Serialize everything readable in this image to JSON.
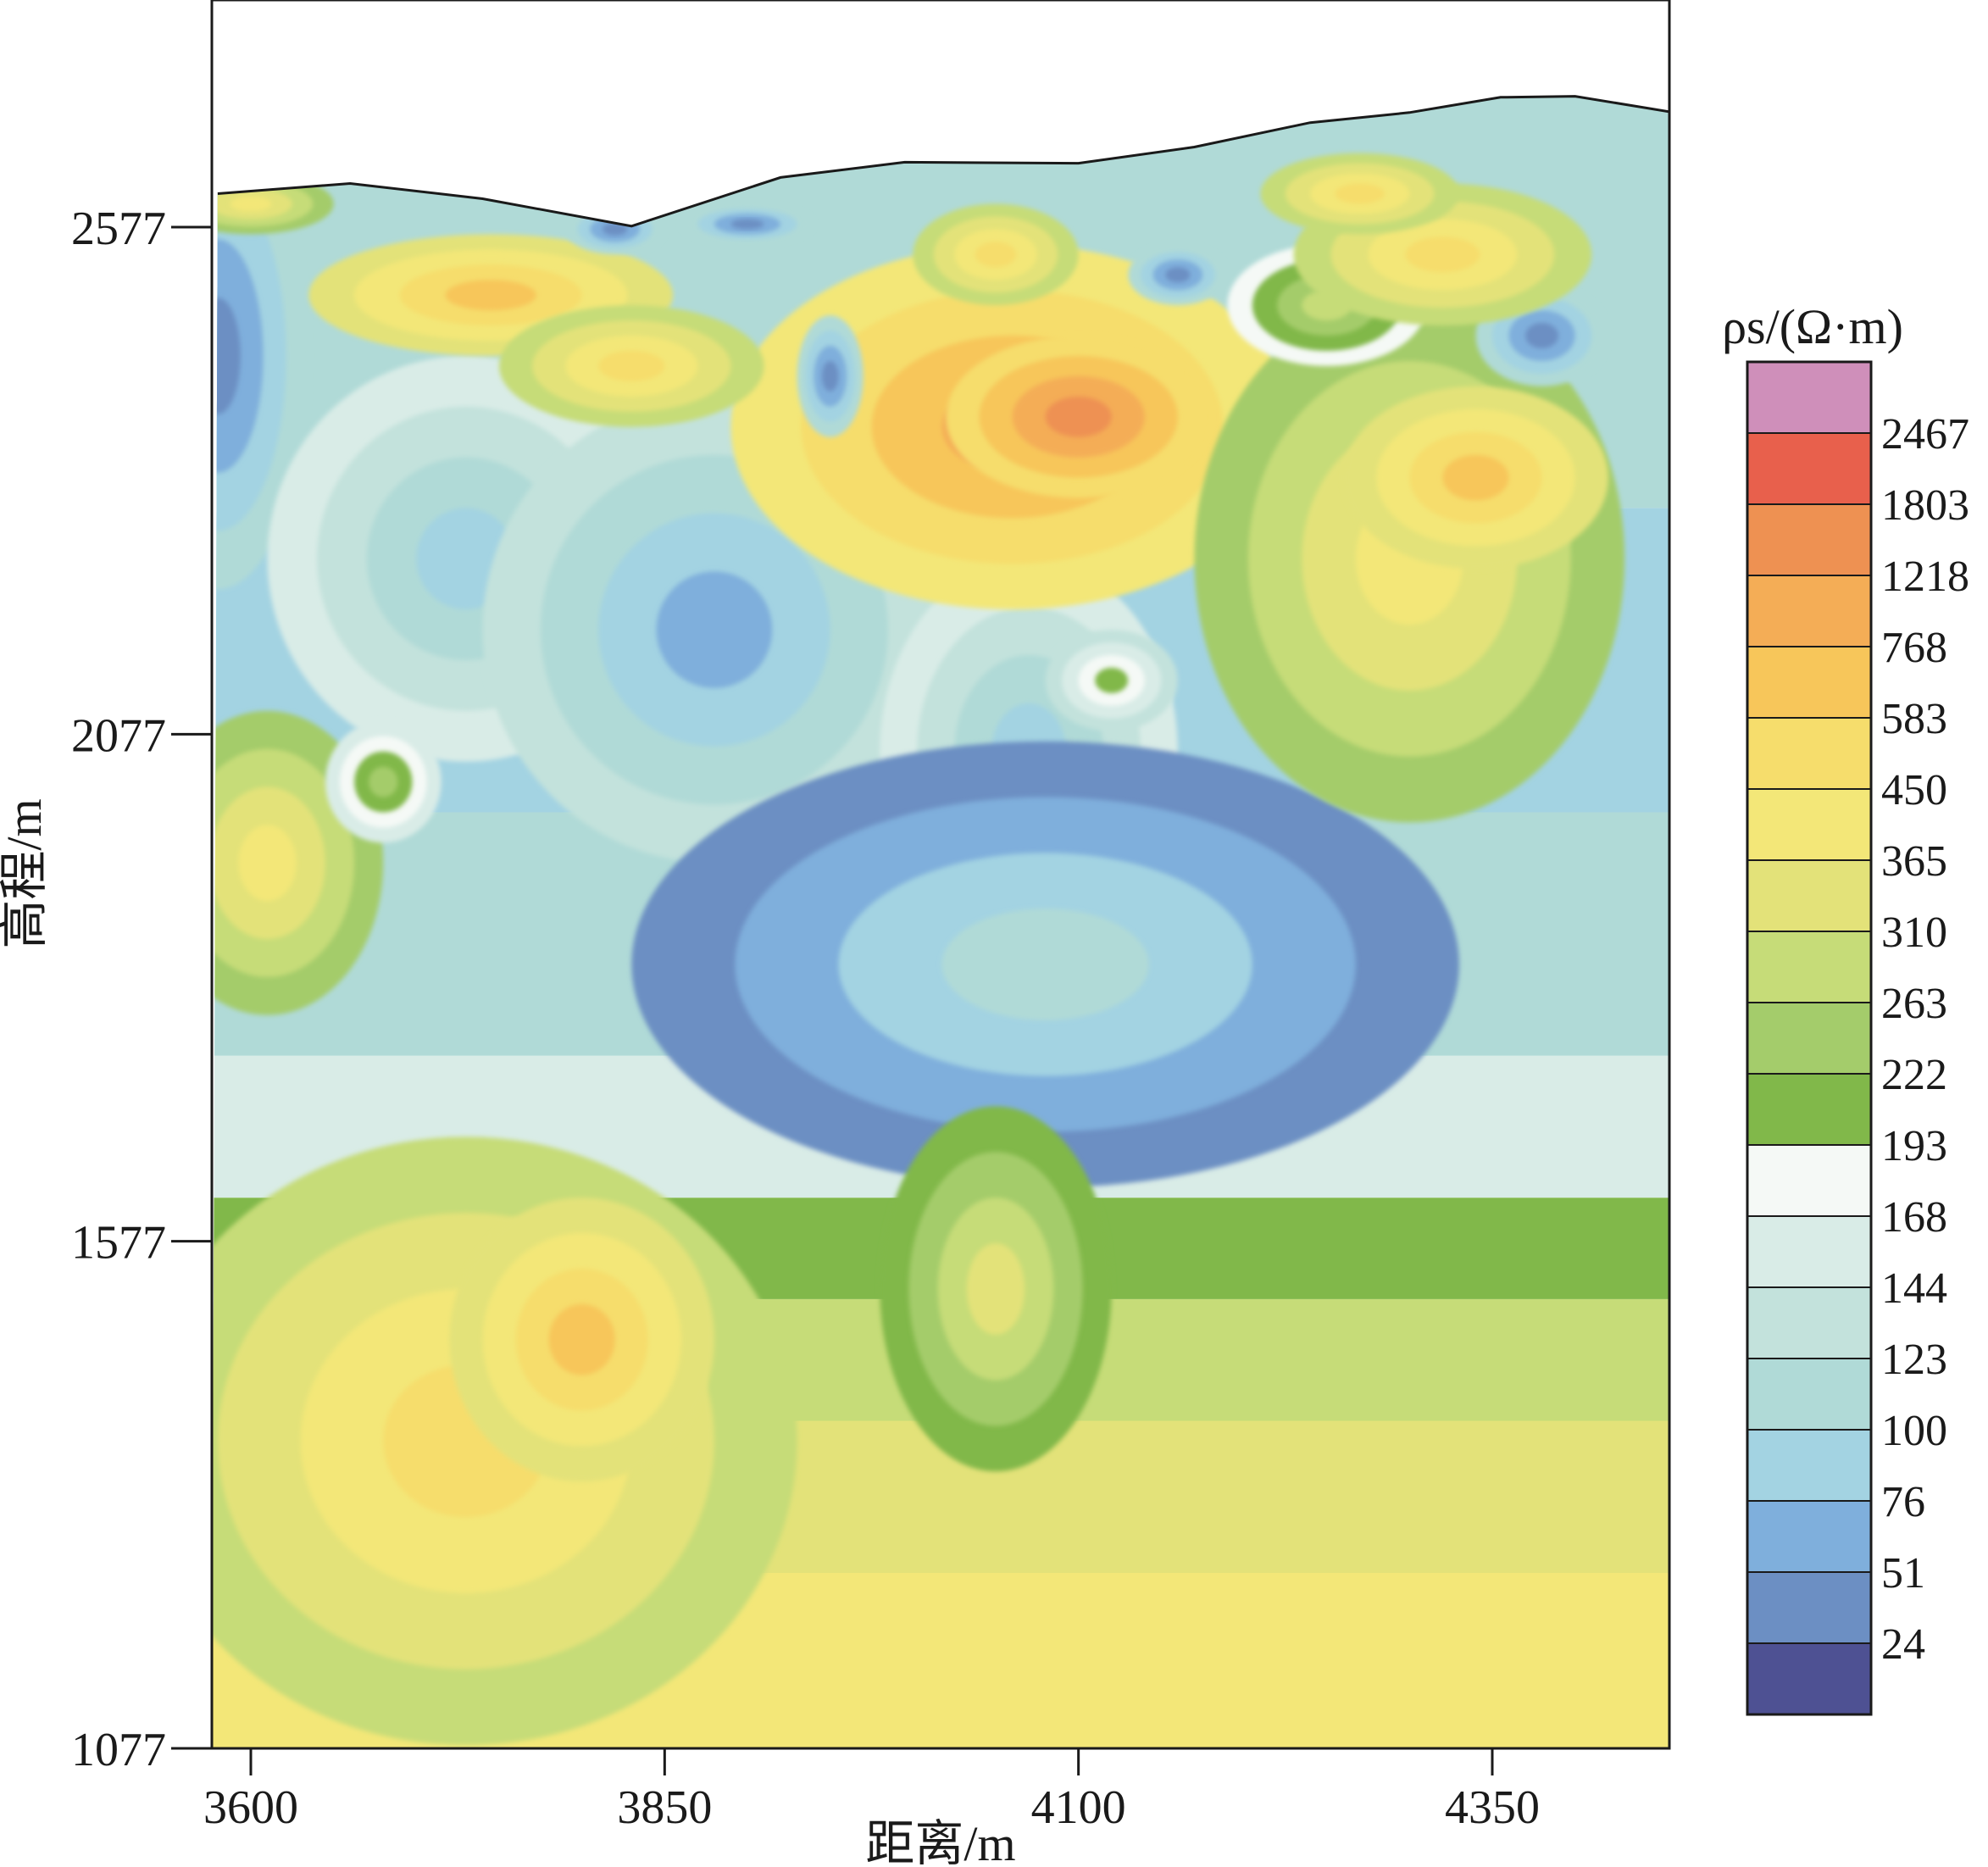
{
  "chart_data": {
    "type": "heatmap",
    "title": "",
    "xlabel": "距离/m",
    "ylabel": "高程/m",
    "x_ticks": [
      3600,
      3850,
      4100,
      4350
    ],
    "y_ticks": [
      2577,
      2077,
      1577,
      1077
    ],
    "xlim": [
      3580,
      4460
    ],
    "ylim": [
      1077,
      2800
    ],
    "colorbar": {
      "label": "ρs/(Ω·m)",
      "tick_labels": [
        "2467",
        "1803",
        "1218",
        "768",
        "583",
        "450",
        "365",
        "310",
        "263",
        "222",
        "193",
        "168",
        "144",
        "123",
        "100",
        "76",
        "51",
        "24"
      ],
      "colors": [
        "#cf8fba",
        "#e8604c",
        "#ee9152",
        "#f4ad56",
        "#f7c65a",
        "#f6dd6c",
        "#f3e778",
        "#e3e279",
        "#c6dc78",
        "#a4cc6b",
        "#81b84a",
        "#f5f9f6",
        "#d9ece7",
        "#c3e2dc",
        "#b0dad7",
        "#a3d3e2",
        "#7fafdc",
        "#6c8fc3",
        "#4e5193"
      ]
    },
    "surface_profile": [
      {
        "x": 3580,
        "y": 2610
      },
      {
        "x": 3660,
        "y": 2620
      },
      {
        "x": 3740,
        "y": 2605
      },
      {
        "x": 3830,
        "y": 2578
      },
      {
        "x": 3920,
        "y": 2626
      },
      {
        "x": 3995,
        "y": 2641
      },
      {
        "x": 4100,
        "y": 2640
      },
      {
        "x": 4170,
        "y": 2656
      },
      {
        "x": 4240,
        "y": 2680
      },
      {
        "x": 4300,
        "y": 2690
      },
      {
        "x": 4355,
        "y": 2705
      },
      {
        "x": 4400,
        "y": 2706
      },
      {
        "x": 4460,
        "y": 2690
      }
    ],
    "anomalies": [
      {
        "x": 3580,
        "y": 2450,
        "rx": 55,
        "ry": 230,
        "value": 24
      },
      {
        "x": 3730,
        "y": 2250,
        "rx": 120,
        "ry": 200,
        "value": 76
      },
      {
        "x": 3880,
        "y": 2180,
        "rx": 140,
        "ry": 230,
        "value": 51
      },
      {
        "x": 4070,
        "y": 2060,
        "rx": 90,
        "ry": 190,
        "value": 76
      },
      {
        "x": 4080,
        "y": 1850,
        "rx": 250,
        "ry": 220,
        "value": 100
      },
      {
        "x": 3610,
        "y": 1950,
        "rx": 70,
        "ry": 150,
        "value": 365
      },
      {
        "x": 3680,
        "y": 2030,
        "rx": 35,
        "ry": 60,
        "value": 222
      },
      {
        "x": 3730,
        "y": 1380,
        "rx": 200,
        "ry": 300,
        "value": 450
      },
      {
        "x": 3800,
        "y": 1480,
        "rx": 80,
        "ry": 140,
        "value": 583
      },
      {
        "x": 4050,
        "y": 1530,
        "rx": 70,
        "ry": 180,
        "value": 310
      },
      {
        "x": 4060,
        "y": 2380,
        "rx": 170,
        "ry": 180,
        "value": 768
      },
      {
        "x": 4100,
        "y": 2390,
        "rx": 80,
        "ry": 80,
        "value": 1218
      },
      {
        "x": 4300,
        "y": 2250,
        "rx": 130,
        "ry": 260,
        "value": 365
      },
      {
        "x": 4340,
        "y": 2330,
        "rx": 80,
        "ry": 90,
        "value": 583
      },
      {
        "x": 4250,
        "y": 2500,
        "rx": 60,
        "ry": 60,
        "value": 263
      },
      {
        "x": 4380,
        "y": 2470,
        "rx": 40,
        "ry": 50,
        "value": 24
      },
      {
        "x": 4120,
        "y": 2130,
        "rx": 40,
        "ry": 50,
        "value": 193
      },
      {
        "x": 3745,
        "y": 2510,
        "rx": 110,
        "ry": 60,
        "value": 583
      },
      {
        "x": 3830,
        "y": 2440,
        "rx": 80,
        "ry": 60,
        "value": 450
      },
      {
        "x": 3820,
        "y": 2575,
        "rx": 30,
        "ry": 25,
        "value": 24
      },
      {
        "x": 3900,
        "y": 2580,
        "rx": 40,
        "ry": 20,
        "value": 24
      },
      {
        "x": 3950,
        "y": 2430,
        "rx": 20,
        "ry": 60,
        "value": 24
      },
      {
        "x": 4050,
        "y": 2550,
        "rx": 50,
        "ry": 50,
        "value": 450
      },
      {
        "x": 4160,
        "y": 2530,
        "rx": 30,
        "ry": 30,
        "value": 24
      },
      {
        "x": 4320,
        "y": 2550,
        "rx": 90,
        "ry": 70,
        "value": 450
      },
      {
        "x": 4270,
        "y": 2610,
        "rx": 60,
        "ry": 40,
        "value": 450
      },
      {
        "x": 3600,
        "y": 2600,
        "rx": 50,
        "ry": 30,
        "value": 365
      }
    ]
  }
}
